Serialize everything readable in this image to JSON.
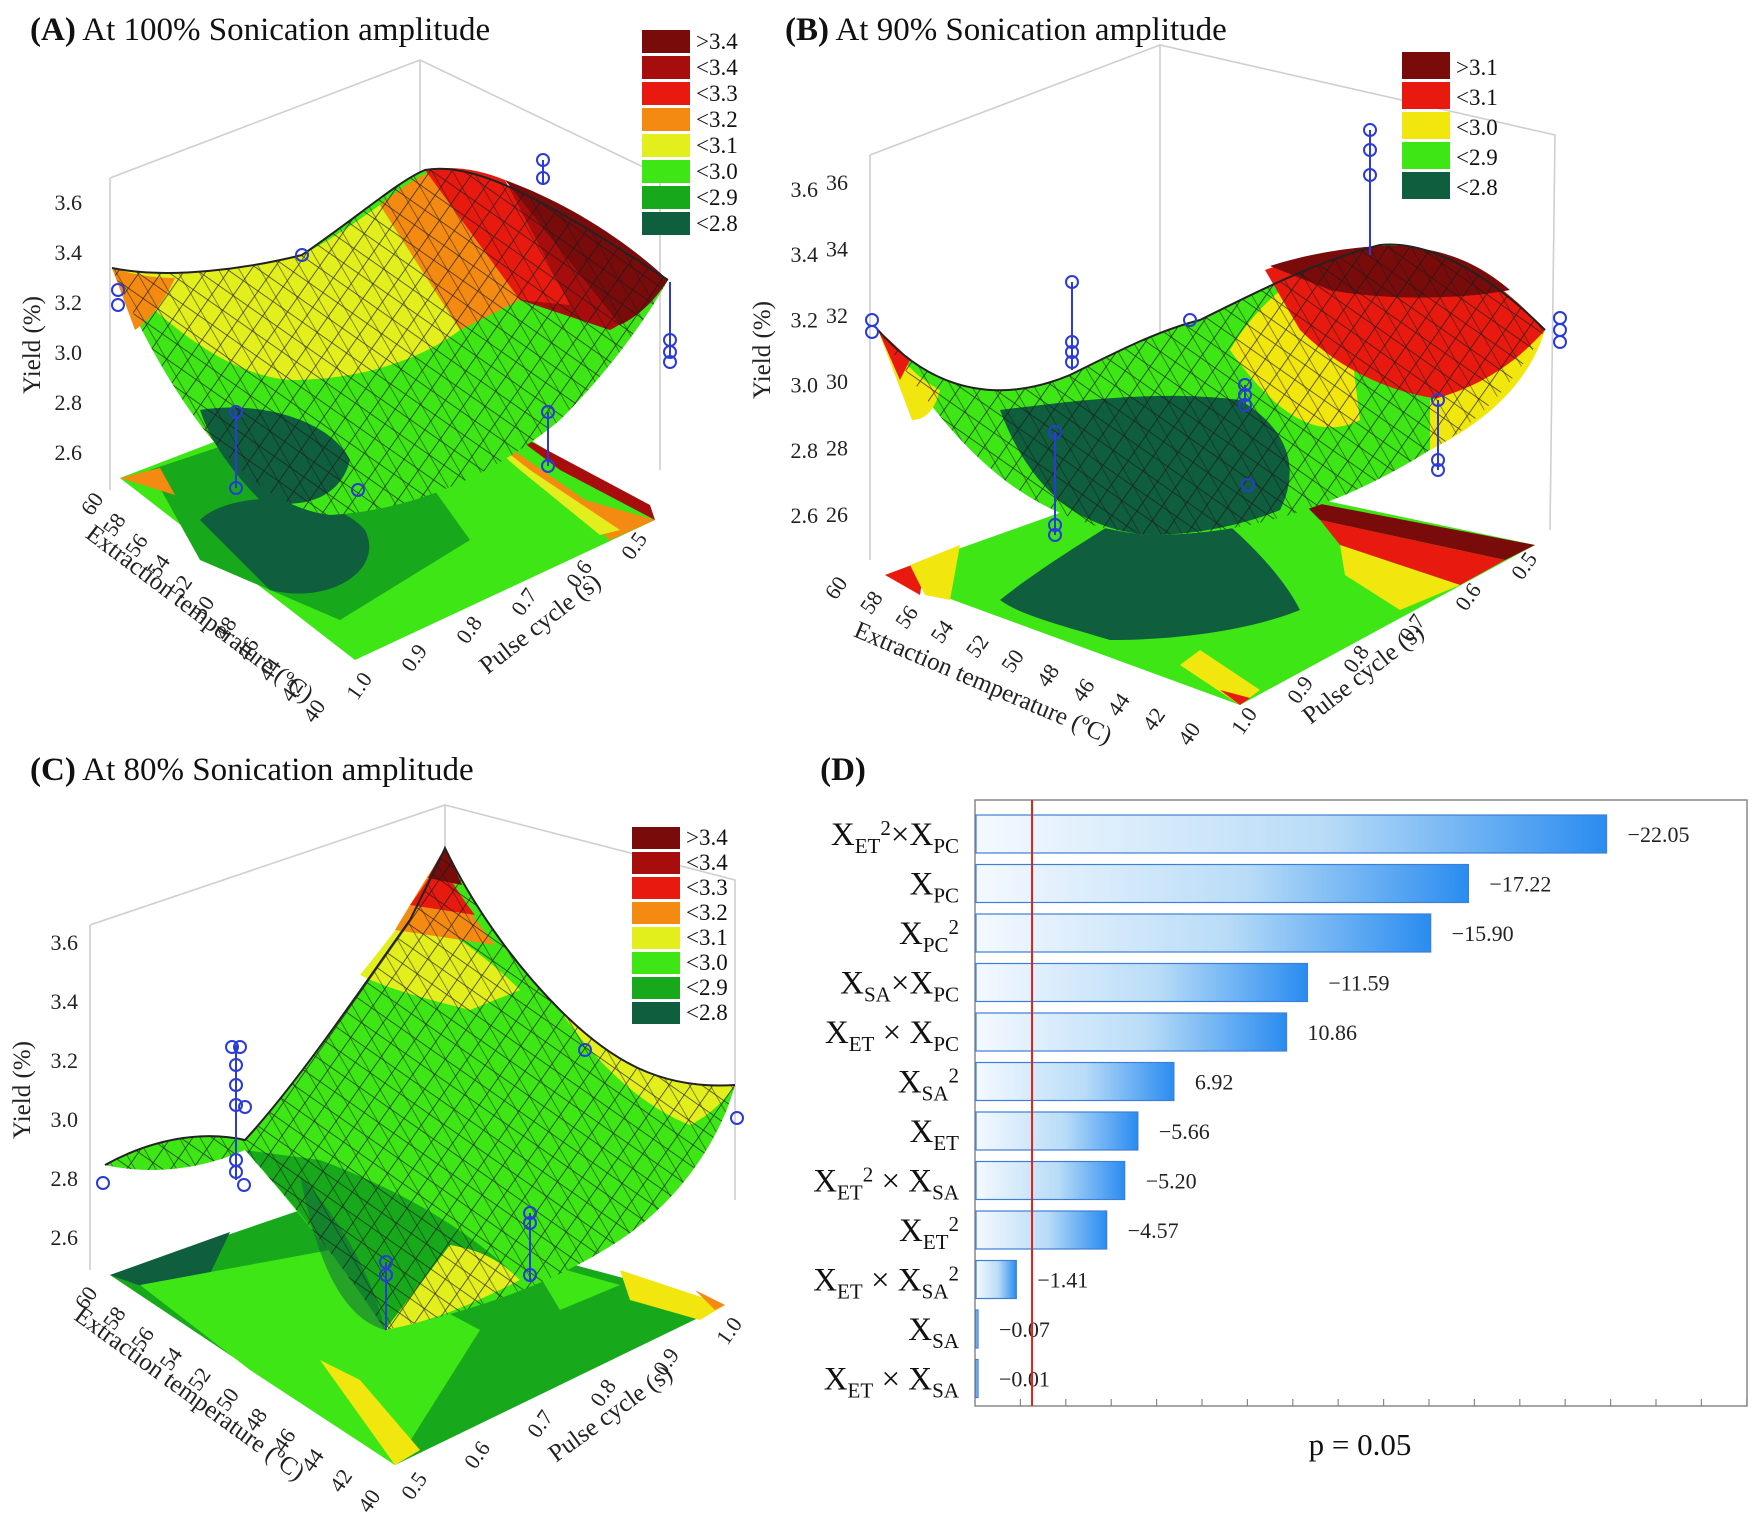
{
  "chart_data": [
    {
      "type": "surface",
      "panel": "(A)",
      "title": "At 100% Sonication amplitude",
      "zlabel": "Yield (%)",
      "xlabel": "Extraction temperature (ºC)",
      "ylabel": "Pulse cycle (s)",
      "z_ticks": [
        "3.6",
        "3.4",
        "3.2",
        "3.0",
        "2.8",
        "2.6"
      ],
      "x_ticks": [
        "60",
        "58",
        "56",
        "54",
        "52",
        "50",
        "48",
        "46",
        "44",
        "42",
        "40"
      ],
      "y_ticks": [
        "1.0",
        "0.9",
        "0.8",
        "0.7",
        "0.6",
        "0.5"
      ],
      "legend": [
        {
          "label": ">3.4",
          "color": "#7a0b0b"
        },
        {
          "label": "<3.4",
          "color": "#a80d0d"
        },
        {
          "label": "<3.3",
          "color": "#e81a10"
        },
        {
          "label": "<3.2",
          "color": "#f58a12"
        },
        {
          "label": "<3.1",
          "color": "#e3ef1c"
        },
        {
          "label": "<3.0",
          "color": "#3de614"
        },
        {
          "label": "<2.9",
          "color": "#17a81c"
        },
        {
          "label": "<2.8",
          "color": "#0f5e3e"
        }
      ]
    },
    {
      "type": "surface",
      "panel": "(B)",
      "title": "At 90% Sonication amplitude",
      "zlabel": "Yield (%)",
      "xlabel": "Extraction temperature (ºC)",
      "ylabel": "Pulse cycle (s)",
      "z_ticks": [
        "3.6",
        "3.4",
        "3.2",
        "3.0",
        "2.8",
        "2.6"
      ],
      "z_ticks_inner": [
        "36",
        "34",
        "32",
        "30",
        "28",
        "26"
      ],
      "x_ticks": [
        "60",
        "58",
        "56",
        "54",
        "52",
        "50",
        "48",
        "46",
        "44",
        "42",
        "40"
      ],
      "y_ticks": [
        "1.0",
        "0.9",
        "0.8",
        "0.7",
        "0.6",
        "0.5"
      ],
      "legend": [
        {
          "label": ">3.1",
          "color": "#7a0b0b"
        },
        {
          "label": "<3.1",
          "color": "#e81a10"
        },
        {
          "label": "<3.0",
          "color": "#f2e60f"
        },
        {
          "label": "<2.9",
          "color": "#3de614"
        },
        {
          "label": "<2.8",
          "color": "#0f5e3e"
        }
      ]
    },
    {
      "type": "surface",
      "panel": "(C)",
      "title": "At 80% Sonication amplitude",
      "zlabel": "Yield (%)",
      "xlabel": "Extraction temperature (ºC)",
      "ylabel": "Pulse cycle (s)",
      "z_ticks": [
        "3.6",
        "3.4",
        "3.2",
        "3.0",
        "2.8",
        "2.6"
      ],
      "x_ticks": [
        "60",
        "58",
        "56",
        "54",
        "52",
        "50",
        "48",
        "46",
        "44",
        "42",
        "40"
      ],
      "y_ticks": [
        "0.5",
        "0.6",
        "0.7",
        "0.8",
        "0.9",
        "1.0"
      ],
      "legend": [
        {
          "label": ">3.4",
          "color": "#7a0b0b"
        },
        {
          "label": "<3.4",
          "color": "#a80d0d"
        },
        {
          "label": "<3.3",
          "color": "#e81a10"
        },
        {
          "label": "<3.2",
          "color": "#f58a12"
        },
        {
          "label": "<3.1",
          "color": "#e3ef1c"
        },
        {
          "label": "<3.0",
          "color": "#3de614"
        },
        {
          "label": "<2.9",
          "color": "#17a81c"
        },
        {
          "label": "<2.8",
          "color": "#0f5e3e"
        }
      ]
    },
    {
      "type": "bar",
      "orientation": "horizontal",
      "panel": "(D)",
      "title": "",
      "xlabel": "p = 0.05",
      "threshold": 1.96,
      "xlim": [
        0,
        23.5
      ],
      "bars": [
        {
          "main": "X",
          "sub": "ET",
          "sup": "2",
          "rest": [
            [
              "×X",
              ""
            ],
            [
              "PC",
              "sub"
            ]
          ],
          "value": 22.05,
          "label": "−22.05"
        },
        {
          "main": "X",
          "sub": "PC",
          "value": 17.22,
          "label": "−17.22"
        },
        {
          "main": "X",
          "sub": "PC",
          "sup": "2",
          "value": 15.9,
          "label": "−15.90"
        },
        {
          "main": "X",
          "sub": "SA",
          "rest": [
            [
              "×X",
              ""
            ],
            [
              "PC",
              "sub"
            ]
          ],
          "value": 11.59,
          "label": "−11.59"
        },
        {
          "main": "X",
          "sub": "ET",
          "rest": [
            [
              " × X",
              ""
            ],
            [
              "PC",
              "sub"
            ]
          ],
          "value": 10.86,
          "label": "10.86"
        },
        {
          "main": "X",
          "sub": "SA",
          "sup": "2",
          "value": 6.92,
          "label": "6.92"
        },
        {
          "main": "X",
          "sub": "ET",
          "value": 5.66,
          "label": "−5.66"
        },
        {
          "main": "X",
          "sub": "ET",
          "sup": "2",
          "rest": [
            [
              " × X",
              ""
            ],
            [
              "SA",
              "sub"
            ]
          ],
          "value": 5.2,
          "label": "−5.20"
        },
        {
          "main": "X",
          "sub": "ET",
          "sup": "2",
          "value": 4.57,
          "label": "−4.57"
        },
        {
          "main": "X",
          "sub": "ET",
          "rest": [
            [
              " × X",
              ""
            ],
            [
              "SA",
              "sub"
            ],
            [
              "2",
              "sup"
            ]
          ],
          "value": 1.41,
          "label": "−1.41"
        },
        {
          "main": "X",
          "sub": "SA",
          "value": 0.07,
          "label": "−0.07"
        },
        {
          "main": "X",
          "sub": "ET",
          "rest": [
            [
              " × X",
              ""
            ],
            [
              "SA",
              "sub"
            ]
          ],
          "value": 0.01,
          "label": "−0.01"
        }
      ]
    }
  ]
}
